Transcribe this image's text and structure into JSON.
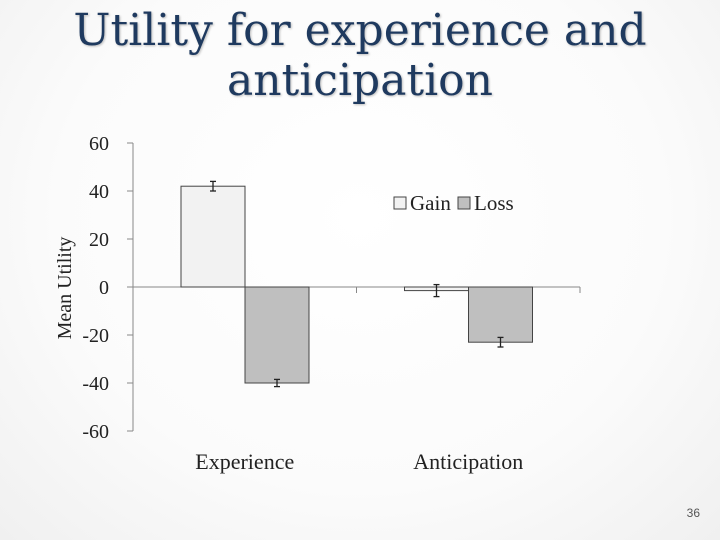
{
  "slide": {
    "title_line1": "Utility for experience and",
    "title_line2": "anticipation",
    "page_number": "36"
  },
  "chart_data": {
    "type": "bar",
    "title": "",
    "xlabel": "",
    "ylabel": "Mean Utility",
    "ylim": [
      -60,
      60
    ],
    "yticks": [
      60,
      40,
      20,
      0,
      -20,
      -40,
      -60
    ],
    "ytick_labels": [
      "60",
      "40",
      "20",
      "0",
      "-20",
      "-40",
      "-60"
    ],
    "categories": [
      "Experience",
      "Anticipation"
    ],
    "series": [
      {
        "name": "Gain",
        "values": [
          42,
          -1.5
        ],
        "errors": [
          2,
          2.5
        ],
        "color": "#f2f2f2"
      },
      {
        "name": "Loss",
        "values": [
          -40,
          -23
        ],
        "errors": [
          1.5,
          2
        ],
        "color": "#bfbfbf"
      }
    ],
    "grid": false,
    "legend": "top-right",
    "error_bars": true
  }
}
